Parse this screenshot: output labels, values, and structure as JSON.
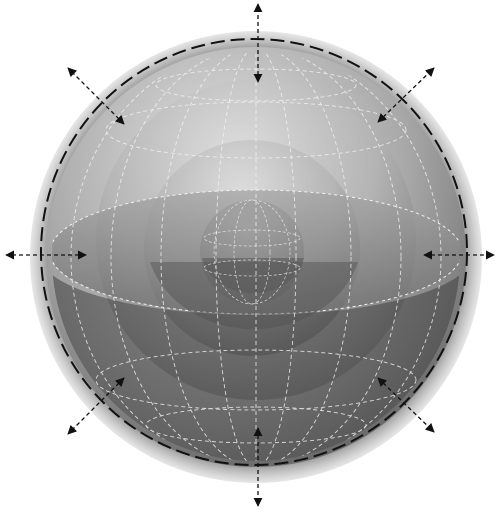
{
  "diagram": {
    "kind": "nested-spheres-expansion",
    "colors": {
      "background": "#ffffff",
      "outer_rim": "#9a9a9a",
      "sphere_light": "#d2d2d2",
      "sphere_dark": "#4a4a4a",
      "equator_plane": "#8c8c8c",
      "meridian_lines": "#f2f2f2",
      "dashed_circle": "#111111",
      "arrows": "#111111"
    },
    "shells": [
      {
        "name": "outer-shell"
      },
      {
        "name": "middle-shell"
      },
      {
        "name": "inner-shell"
      },
      {
        "name": "core-shell"
      }
    ],
    "arrows": [
      {
        "name": "arrow-up",
        "direction": "up"
      },
      {
        "name": "arrow-down",
        "direction": "down"
      },
      {
        "name": "arrow-left",
        "direction": "left"
      },
      {
        "name": "arrow-right",
        "direction": "right"
      },
      {
        "name": "arrow-up-left",
        "direction": "up-left"
      },
      {
        "name": "arrow-up-right",
        "direction": "up-right"
      },
      {
        "name": "arrow-down-left",
        "direction": "down-left"
      },
      {
        "name": "arrow-down-right",
        "direction": "down-right"
      }
    ]
  }
}
